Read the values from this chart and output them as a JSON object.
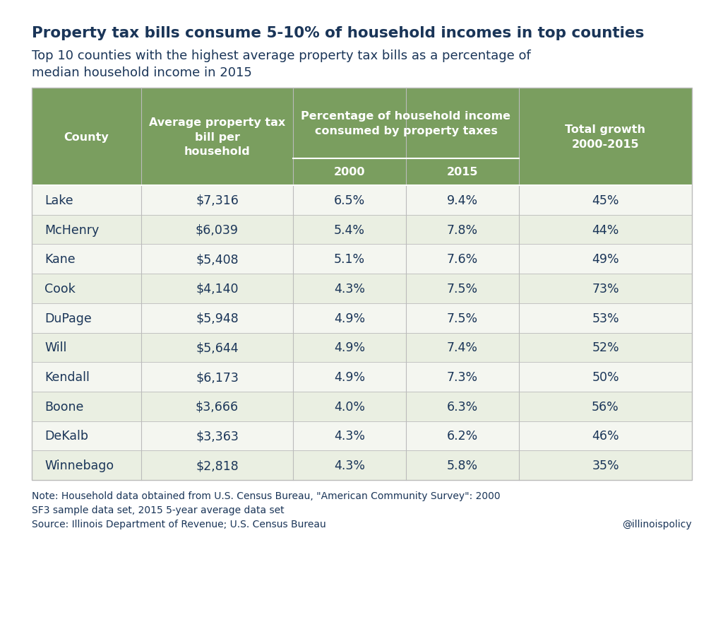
{
  "title_bold": "Property tax bills consume 5-10% of household incomes in top counties",
  "title_sub": "Top 10 counties with the highest average property tax bills as a percentage of\nmedian household income in 2015",
  "counties": [
    "Lake",
    "McHenry",
    "Kane",
    "Cook",
    "DuPage",
    "Will",
    "Kendall",
    "Boone",
    "DeKalb",
    "Winnebago"
  ],
  "avg_tax": [
    "$7,316",
    "$6,039",
    "$5,408",
    "$4,140",
    "$5,948",
    "$5,644",
    "$6,173",
    "$3,666",
    "$3,363",
    "$2,818"
  ],
  "pct_2000": [
    "6.5%",
    "5.4%",
    "5.1%",
    "4.3%",
    "4.9%",
    "4.9%",
    "4.9%",
    "4.0%",
    "4.3%",
    "4.3%"
  ],
  "pct_2015": [
    "9.4%",
    "7.8%",
    "7.6%",
    "7.5%",
    "7.5%",
    "7.4%",
    "7.3%",
    "6.3%",
    "6.2%",
    "5.8%"
  ],
  "growth": [
    "45%",
    "44%",
    "49%",
    "73%",
    "53%",
    "52%",
    "50%",
    "56%",
    "46%",
    "35%"
  ],
  "header_bg": "#7a9e5f",
  "row_bg_even": "#eaefe2",
  "row_bg_odd": "#f4f6f0",
  "header_text_color": "#ffffff",
  "data_text_color": "#1a3558",
  "title_bold_color": "#1a3558",
  "title_sub_color": "#1a3558",
  "note_color": "#1a3558",
  "source_color": "#1a3558",
  "handle_color": "#1a3558",
  "bg_color": "#ffffff",
  "note_text": "Note: Household data obtained from U.S. Census Bureau, \"American Community Survey\": 2000\nSF3 sample data set, 2015 5-year average data set",
  "source_text": "Source: Illinois Department of Revenue; U.S. Census Bureau",
  "handle_text": "@illinoispolicy",
  "table_border_color": "#bbbbbb",
  "divider_color": "#ffffff"
}
